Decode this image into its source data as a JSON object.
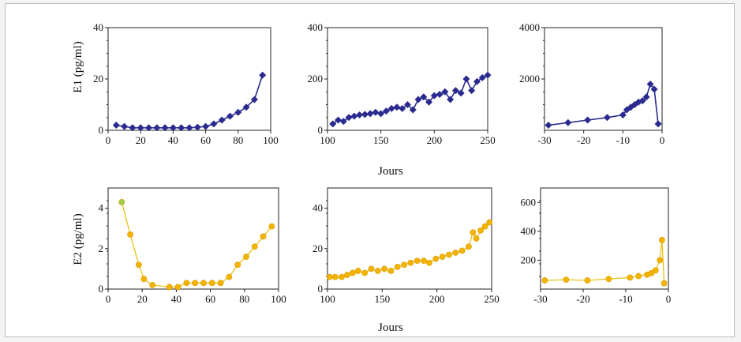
{
  "figure": {
    "xlabel": "Jours",
    "ylabel_row1": "E1 (pg/ml)",
    "ylabel_row2": "E2 (pg/ml)"
  },
  "colors": {
    "e1_series": "#2b2b8f",
    "e2_line": "#e8c21a",
    "e2_marker": "#f3b400",
    "e2_first_marker": "#9ccc4a"
  },
  "chart_data": [
    {
      "type": "line",
      "panel": "E1-early",
      "xlim": [
        0,
        100
      ],
      "ylim": [
        0,
        40
      ],
      "xticks": [
        0,
        20,
        40,
        60,
        80,
        100
      ],
      "yticks": [
        0,
        20,
        40
      ],
      "x": [
        5,
        10,
        15,
        20,
        25,
        30,
        35,
        40,
        45,
        50,
        55,
        60,
        65,
        70,
        75,
        80,
        85,
        90,
        95
      ],
      "y": [
        2,
        1.5,
        1,
        1,
        1,
        1,
        1,
        1,
        1,
        1,
        1.2,
        1.5,
        2.5,
        4,
        5.5,
        7,
        9,
        12,
        21.5
      ]
    },
    {
      "type": "line",
      "panel": "E1-mid",
      "xlim": [
        100,
        250
      ],
      "ylim": [
        0,
        400
      ],
      "xticks": [
        100,
        150,
        200,
        250
      ],
      "yticks": [
        0,
        200,
        400
      ],
      "x": [
        105,
        110,
        115,
        120,
        125,
        130,
        135,
        140,
        145,
        150,
        155,
        160,
        165,
        170,
        175,
        180,
        185,
        190,
        195,
        200,
        205,
        210,
        215,
        220,
        225,
        230,
        235,
        240,
        245,
        250
      ],
      "y": [
        25,
        40,
        35,
        50,
        55,
        60,
        62,
        65,
        70,
        65,
        75,
        85,
        90,
        85,
        100,
        80,
        120,
        130,
        110,
        135,
        140,
        150,
        120,
        155,
        145,
        200,
        155,
        190,
        205,
        215
      ]
    },
    {
      "type": "line",
      "panel": "E1-late",
      "xlim": [
        -30,
        0
      ],
      "ylim": [
        0,
        4000
      ],
      "xticks": [
        -30,
        -20,
        -10,
        0
      ],
      "yticks": [
        2000,
        4000
      ],
      "x": [
        -29,
        -24,
        -19,
        -14,
        -10,
        -9,
        -8,
        -7,
        -6,
        -5,
        -4,
        -3,
        -2,
        -1
      ],
      "y": [
        200,
        300,
        400,
        500,
        600,
        800,
        900,
        1000,
        1100,
        1150,
        1300,
        1800,
        1600,
        250
      ]
    },
    {
      "type": "line",
      "panel": "E2-early",
      "xlim": [
        0,
        100
      ],
      "ylim": [
        0,
        5
      ],
      "xticks": [
        0,
        20,
        40,
        60,
        80,
        100
      ],
      "yticks": [
        0,
        2,
        4
      ],
      "x": [
        8,
        13,
        18,
        21,
        26,
        36,
        41,
        46,
        51,
        56,
        61,
        66,
        71,
        76,
        81,
        86,
        91,
        96
      ],
      "y": [
        4.3,
        2.7,
        1.2,
        0.5,
        0.2,
        0.1,
        0.1,
        0.3,
        0.3,
        0.3,
        0.3,
        0.3,
        0.6,
        1.2,
        1.6,
        2.1,
        2.6,
        3.1
      ]
    },
    {
      "type": "line",
      "panel": "E2-mid",
      "xlim": [
        100,
        250
      ],
      "ylim": [
        0,
        50
      ],
      "xticks": [
        100,
        150,
        200,
        250
      ],
      "yticks": [
        0,
        20,
        40
      ],
      "x": [
        102,
        107,
        113,
        118,
        123,
        128,
        134,
        140,
        146,
        152,
        158,
        164,
        170,
        176,
        182,
        188,
        193,
        199,
        205,
        211,
        217,
        223,
        229,
        233,
        236,
        240,
        244,
        248
      ],
      "y": [
        6,
        6,
        6,
        7,
        8,
        9,
        8,
        10,
        9,
        10,
        9,
        11,
        12,
        13,
        14,
        14,
        13,
        15,
        16,
        17,
        18,
        19,
        21,
        28,
        25,
        29,
        31,
        33
      ]
    },
    {
      "type": "line",
      "panel": "E2-late",
      "xlim": [
        -30,
        0
      ],
      "ylim": [
        0,
        700
      ],
      "xticks": [
        -30,
        -20,
        -10,
        0
      ],
      "yticks": [
        200,
        400,
        600
      ],
      "x": [
        -29,
        -24,
        -19,
        -14,
        -9,
        -7,
        -5,
        -4,
        -3,
        -2,
        -1.5,
        -1
      ],
      "y": [
        60,
        65,
        60,
        70,
        80,
        90,
        100,
        110,
        130,
        200,
        340,
        40
      ]
    }
  ]
}
